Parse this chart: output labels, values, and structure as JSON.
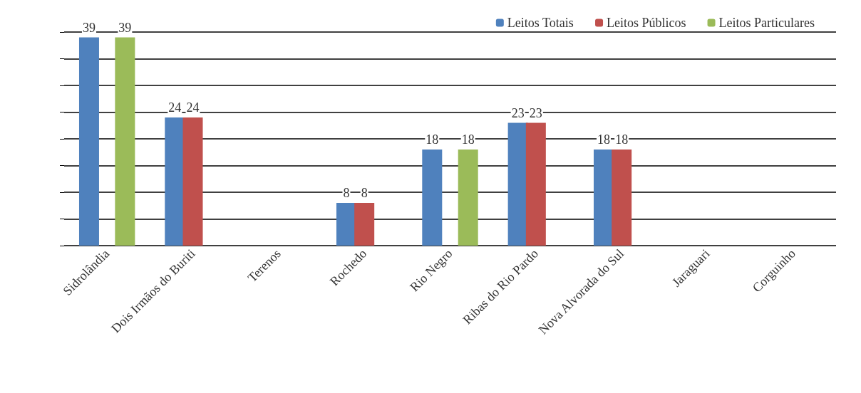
{
  "chart_data": {
    "type": "bar",
    "categories": [
      "Sidrolândia",
      "Dois Irmãos do Buriti",
      "Terenos",
      "Rochedo",
      "Rio Negro",
      "Ribas do Rio Pardo",
      "Nova Alvorada do Sul",
      "Jaraguari",
      "Corguinho"
    ],
    "series": [
      {
        "name": "Leitos Totais",
        "color": "#4f81bd",
        "values": [
          39,
          24,
          0,
          8,
          18,
          23,
          18,
          0,
          0
        ],
        "value_labels": [
          "39",
          "24",
          null,
          "8",
          "18",
          "23",
          "18",
          null,
          null
        ]
      },
      {
        "name": "Leitos Públicos",
        "color": "#c0504d",
        "values": [
          0,
          24,
          0,
          8,
          0,
          23,
          18,
          0,
          0
        ],
        "value_labels": [
          null,
          "24",
          null,
          "8",
          null,
          "23",
          "18",
          null,
          null
        ]
      },
      {
        "name": "Leitos Particulares",
        "color": "#9bbb59",
        "values": [
          39,
          0,
          0,
          0,
          18,
          0,
          0,
          0,
          0
        ],
        "value_labels": [
          "39",
          null,
          null,
          null,
          "18",
          null,
          null,
          null,
          null
        ]
      }
    ],
    "ylim": [
      0,
      40
    ],
    "yticks": [
      {
        "value": 0,
        "label": null
      },
      {
        "value": 5,
        "label": null
      },
      {
        "value": 10,
        "label": null
      },
      {
        "value": 15,
        "label": null
      },
      {
        "value": 20,
        "label": null
      },
      {
        "value": 25,
        "label": null
      },
      {
        "value": 30,
        "label": null
      },
      {
        "value": 35,
        "label": null
      },
      {
        "value": 40,
        "label": null
      }
    ],
    "tick_labels": "x",
    "grid": "y",
    "legend": "top right"
  }
}
